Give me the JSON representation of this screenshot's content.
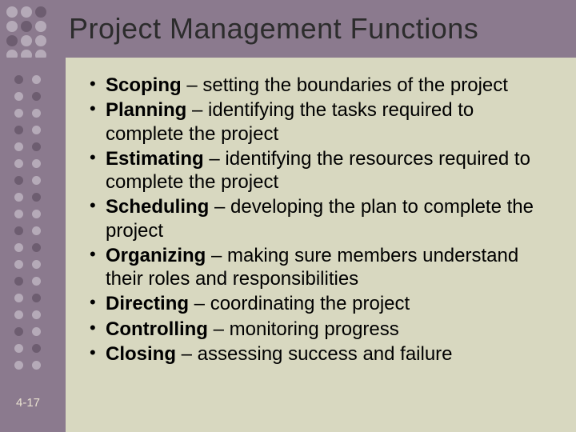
{
  "colors": {
    "header_bg": "#8b7a8e",
    "sidebar_bg": "#8b7a8e",
    "content_bg": "#d8d8c0",
    "title_color": "#2c2c2c",
    "text_color": "#000000",
    "slide_number_color": "#e8e0d0",
    "dot_light": "#b5aab8",
    "dot_dark": "#6d5d70",
    "side_dot_light": "#b5aab8",
    "side_dot_dark": "#6d5d70"
  },
  "title": "Project Management Functions",
  "slide_number": "4-17",
  "bullets": [
    {
      "term": "Scoping",
      "desc": " – setting the boundaries of the project"
    },
    {
      "term": "Planning",
      "desc": " – identifying the tasks required to complete the project"
    },
    {
      "term": "Estimating",
      "desc": " – identifying the resources required to complete the project"
    },
    {
      "term": "Scheduling",
      "desc": " – developing the plan to complete the project"
    },
    {
      "term": "Organizing",
      "desc": " – making sure members understand their roles and responsibilities"
    },
    {
      "term": "Directing",
      "desc": " – coordinating the project"
    },
    {
      "term": "Controlling",
      "desc": " – monitoring progress"
    },
    {
      "term": "Closing",
      "desc": " – assessing success and failure"
    }
  ],
  "header_dots": {
    "rows": 4,
    "cols": 3,
    "pattern": [
      [
        "light",
        "light",
        "dark"
      ],
      [
        "light",
        "dark",
        "light"
      ],
      [
        "dark",
        "light",
        "light"
      ],
      [
        "light",
        "light",
        "light"
      ]
    ]
  },
  "side_dots": {
    "rows": 18,
    "cols": 2
  }
}
